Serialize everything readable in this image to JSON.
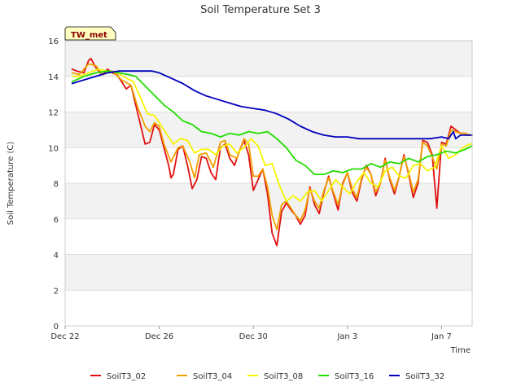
{
  "chart_data": {
    "type": "line",
    "title": "Soil Temperature Set 3",
    "xlabel": "Time",
    "ylabel": "Soil Temperature (C)",
    "badge": "TW_met",
    "xlim": [
      0,
      17.3
    ],
    "ylim": [
      0,
      16
    ],
    "yticks": [
      0,
      2,
      4,
      6,
      8,
      10,
      12,
      14,
      16
    ],
    "xticks": [
      {
        "value": 0,
        "label": "Dec 22"
      },
      {
        "value": 4,
        "label": "Dec 26"
      },
      {
        "value": 8,
        "label": "Dec 30"
      },
      {
        "value": 12,
        "label": "Jan 3"
      },
      {
        "value": 16,
        "label": "Jan 7"
      }
    ],
    "series": [
      {
        "name": "SoilT3_02",
        "color": "#e01010",
        "x": [
          0.3,
          0.5,
          0.8,
          1.0,
          1.1,
          1.3,
          1.5,
          1.6,
          1.8,
          2.0,
          2.2,
          2.4,
          2.6,
          2.8,
          3.0,
          3.2,
          3.4,
          3.6,
          3.8,
          4.0,
          4.2,
          4.4,
          4.5,
          4.6,
          4.8,
          5.0,
          5.2,
          5.4,
          5.6,
          5.8,
          6.0,
          6.2,
          6.4,
          6.6,
          6.8,
          7.0,
          7.2,
          7.4,
          7.6,
          7.8,
          8.0,
          8.2,
          8.4,
          8.6,
          8.8,
          9.0,
          9.2,
          9.4,
          9.6,
          9.8,
          10.0,
          10.2,
          10.4,
          10.6,
          10.8,
          11.0,
          11.2,
          11.4,
          11.6,
          11.8,
          12.0,
          12.2,
          12.4,
          12.6,
          12.8,
          13.0,
          13.2,
          13.4,
          13.6,
          13.8,
          14.0,
          14.2,
          14.4,
          14.6,
          14.8,
          15.0,
          15.2,
          15.4,
          15.6,
          15.8,
          16.0,
          16.2,
          16.4,
          16.6,
          16.8,
          17.0,
          17.2,
          17.3
        ],
        "y": [
          14.4,
          14.3,
          14.2,
          14.9,
          15.0,
          14.5,
          14.2,
          14.1,
          14.4,
          14.2,
          14.1,
          13.7,
          13.3,
          13.5,
          12.4,
          11.3,
          10.2,
          10.3,
          11.3,
          11.0,
          10.0,
          9.0,
          8.3,
          8.5,
          9.9,
          10.1,
          9.0,
          7.7,
          8.2,
          9.5,
          9.4,
          8.6,
          8.2,
          10.0,
          10.2,
          9.4,
          9.0,
          9.8,
          10.4,
          9.6,
          7.6,
          8.2,
          8.8,
          7.4,
          5.2,
          4.5,
          6.4,
          6.9,
          6.5,
          6.2,
          5.7,
          6.2,
          7.8,
          6.8,
          6.3,
          7.5,
          8.4,
          7.4,
          6.5,
          8.0,
          8.6,
          7.5,
          7.0,
          8.2,
          9.0,
          8.5,
          7.3,
          8.0,
          9.4,
          8.2,
          7.4,
          8.4,
          9.6,
          8.5,
          7.2,
          8.0,
          10.4,
          10.3,
          9.6,
          6.6,
          10.3,
          10.2,
          11.2,
          11.0,
          10.8,
          10.8,
          10.7,
          10.7
        ]
      },
      {
        "name": "SoilT3_04",
        "color": "#f0a000",
        "x": [
          0.3,
          0.6,
          1.0,
          1.3,
          1.6,
          2.0,
          2.4,
          2.8,
          3.1,
          3.4,
          3.6,
          3.8,
          4.0,
          4.2,
          4.5,
          4.8,
          5.0,
          5.3,
          5.5,
          5.7,
          6.0,
          6.3,
          6.6,
          6.8,
          7.0,
          7.3,
          7.6,
          7.8,
          8.0,
          8.2,
          8.4,
          8.6,
          8.8,
          9.0,
          9.2,
          9.4,
          9.6,
          9.8,
          10.0,
          10.2,
          10.4,
          10.6,
          10.8,
          11.0,
          11.2,
          11.4,
          11.6,
          11.8,
          12.0,
          12.2,
          12.4,
          12.6,
          12.8,
          13.0,
          13.2,
          13.4,
          13.6,
          13.8,
          14.0,
          14.2,
          14.4,
          14.6,
          14.8,
          15.0,
          15.2,
          15.4,
          15.6,
          15.8,
          16.0,
          16.2,
          16.4,
          16.6,
          16.8,
          17.0,
          17.2,
          17.3
        ],
        "y": [
          14.2,
          14.1,
          14.7,
          14.6,
          14.1,
          14.3,
          13.8,
          13.5,
          12.2,
          11.2,
          10.9,
          11.4,
          11.2,
          10.2,
          9.2,
          10.0,
          10.1,
          9.2,
          8.3,
          9.6,
          9.7,
          8.9,
          10.3,
          10.4,
          9.6,
          9.4,
          10.5,
          10.2,
          8.4,
          8.4,
          8.8,
          7.8,
          6.2,
          5.4,
          6.8,
          7.0,
          6.6,
          6.2,
          5.9,
          6.5,
          7.7,
          7.0,
          6.6,
          7.6,
          8.3,
          7.5,
          6.8,
          7.9,
          8.6,
          7.7,
          7.2,
          8.3,
          8.9,
          8.5,
          7.5,
          8.0,
          9.3,
          8.3,
          7.6,
          8.4,
          9.5,
          8.6,
          7.5,
          8.2,
          10.3,
          10.1,
          9.5,
          8.8,
          10.2,
          10.1,
          11.0,
          10.9,
          10.8,
          10.8,
          10.7,
          10.7
        ]
      },
      {
        "name": "SoilT3_08",
        "color": "#f5f500",
        "x": [
          0.3,
          0.6,
          1.0,
          1.4,
          1.8,
          2.2,
          2.6,
          2.9,
          3.2,
          3.5,
          3.8,
          4.0,
          4.3,
          4.6,
          4.9,
          5.2,
          5.5,
          5.8,
          6.1,
          6.4,
          6.7,
          7.0,
          7.3,
          7.6,
          7.9,
          8.2,
          8.5,
          8.8,
          9.1,
          9.4,
          9.7,
          10.0,
          10.3,
          10.6,
          10.9,
          11.2,
          11.5,
          11.8,
          12.1,
          12.4,
          12.7,
          13.0,
          13.3,
          13.6,
          13.9,
          14.2,
          14.5,
          14.8,
          15.1,
          15.4,
          15.7,
          16.0,
          16.3,
          16.6,
          16.9,
          17.2,
          17.3
        ],
        "y": [
          14.0,
          14.0,
          14.2,
          14.4,
          14.3,
          14.2,
          13.9,
          13.7,
          12.8,
          11.9,
          11.8,
          11.4,
          10.8,
          10.2,
          10.5,
          10.4,
          9.7,
          9.9,
          9.9,
          9.6,
          10.1,
          10.2,
          9.7,
          10.0,
          10.5,
          10.1,
          9.0,
          9.1,
          7.9,
          7.0,
          7.3,
          7.0,
          7.5,
          7.6,
          7.0,
          7.6,
          8.2,
          7.8,
          7.4,
          8.1,
          8.6,
          8.0,
          7.8,
          8.7,
          8.9,
          8.4,
          8.3,
          9.0,
          9.1,
          8.7,
          8.9,
          10.1,
          9.4,
          9.6,
          10.0,
          10.2,
          10.2
        ]
      },
      {
        "name": "SoilT3_16",
        "color": "#22dd00",
        "x": [
          0.3,
          0.8,
          1.3,
          1.8,
          2.3,
          2.7,
          3.0,
          3.3,
          3.6,
          3.9,
          4.2,
          4.6,
          5.0,
          5.4,
          5.8,
          6.2,
          6.6,
          7.0,
          7.4,
          7.8,
          8.2,
          8.6,
          9.0,
          9.4,
          9.8,
          10.2,
          10.6,
          11.0,
          11.4,
          11.8,
          12.2,
          12.6,
          13.0,
          13.4,
          13.8,
          14.2,
          14.6,
          15.0,
          15.4,
          15.8,
          16.2,
          16.6,
          17.0,
          17.3
        ],
        "y": [
          13.7,
          14.0,
          14.2,
          14.3,
          14.2,
          14.1,
          14.0,
          13.6,
          13.2,
          12.8,
          12.4,
          12.0,
          11.5,
          11.3,
          10.9,
          10.8,
          10.6,
          10.8,
          10.7,
          10.9,
          10.8,
          10.9,
          10.5,
          10.0,
          9.3,
          9.0,
          8.5,
          8.5,
          8.7,
          8.6,
          8.8,
          8.8,
          9.1,
          8.9,
          9.2,
          9.1,
          9.4,
          9.2,
          9.5,
          9.6,
          9.8,
          9.7,
          9.9,
          10.1
        ]
      },
      {
        "name": "SoilT3_32",
        "color": "#0000bb",
        "x": [
          0.3,
          0.8,
          1.3,
          1.8,
          2.3,
          2.8,
          3.3,
          3.7,
          4.0,
          4.5,
          5.0,
          5.5,
          6.0,
          6.5,
          7.0,
          7.5,
          8.0,
          8.5,
          9.0,
          9.5,
          10.0,
          10.5,
          11.0,
          11.5,
          12.0,
          12.5,
          13.0,
          13.5,
          14.0,
          14.5,
          15.0,
          15.5,
          16.0,
          16.3,
          16.5,
          16.6,
          16.8,
          17.0,
          17.3
        ],
        "y": [
          13.6,
          13.8,
          14.0,
          14.2,
          14.3,
          14.3,
          14.3,
          14.3,
          14.2,
          13.9,
          13.6,
          13.2,
          12.9,
          12.7,
          12.5,
          12.3,
          12.2,
          12.1,
          11.9,
          11.6,
          11.2,
          10.9,
          10.7,
          10.6,
          10.6,
          10.5,
          10.5,
          10.5,
          10.5,
          10.5,
          10.5,
          10.5,
          10.6,
          10.5,
          10.9,
          10.5,
          10.7,
          10.7,
          10.7
        ]
      }
    ]
  }
}
